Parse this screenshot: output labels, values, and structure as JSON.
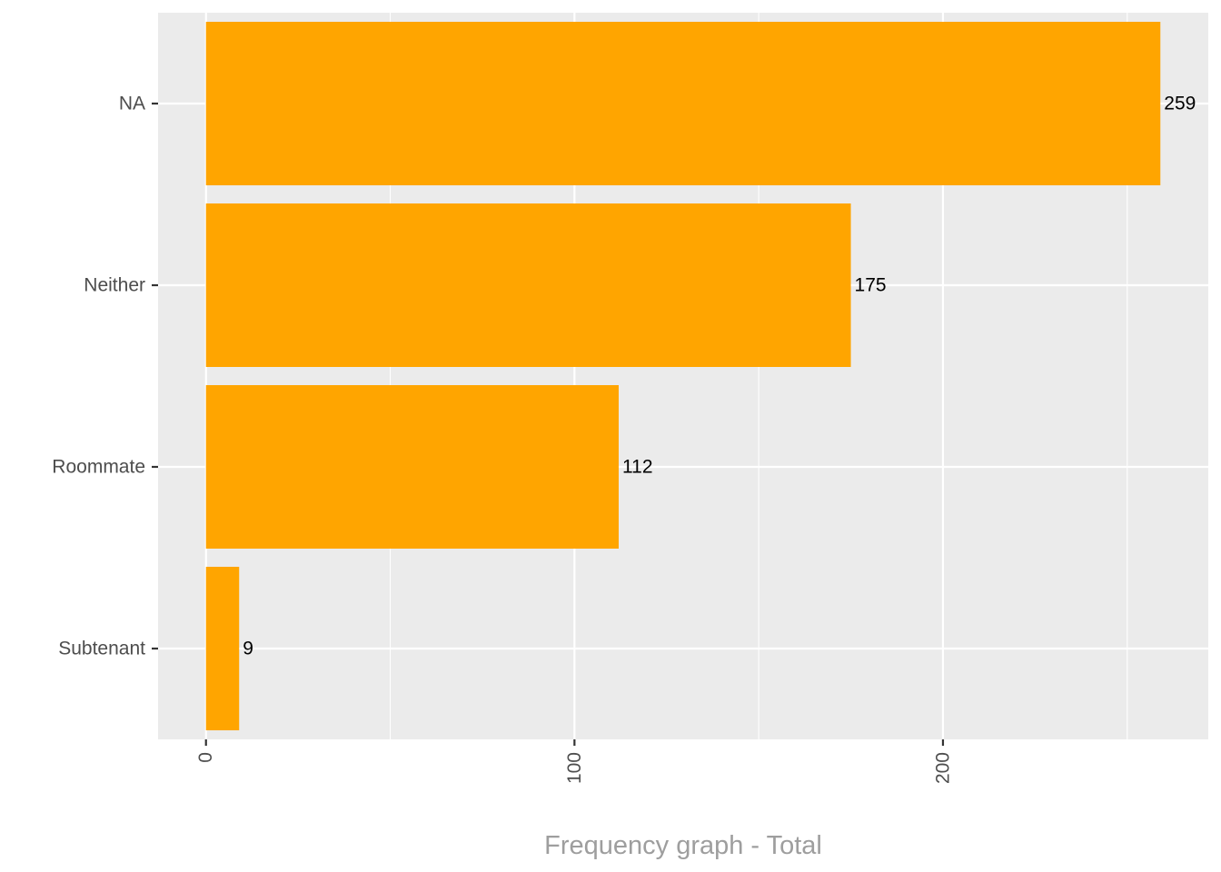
{
  "chart_data": {
    "type": "bar",
    "orientation": "horizontal",
    "categories": [
      "NA",
      "Neither",
      "Roommate",
      "Subtenant"
    ],
    "values": [
      259,
      175,
      112,
      9
    ],
    "data_labels": [
      "259",
      "175",
      "112",
      "9"
    ],
    "xlabel": "Frequency graph - Total",
    "ylabel": "",
    "xlim": [
      -13,
      272
    ],
    "x_ticks": [
      0,
      100,
      200
    ],
    "x_tick_labels": [
      "0",
      "100",
      "200"
    ],
    "x_minor_ticks": [
      50,
      150,
      250
    ],
    "x_tick_label_rotation": "vertical",
    "grid": true,
    "legend": "none"
  },
  "colors": {
    "bar_fill": "#FFA500",
    "panel_background": "#EBEBEB",
    "gridlines": "#FFFFFF",
    "tick_label": "#4D4D4D",
    "axis_title": "#9E9E9E",
    "data_label": "#000000"
  }
}
